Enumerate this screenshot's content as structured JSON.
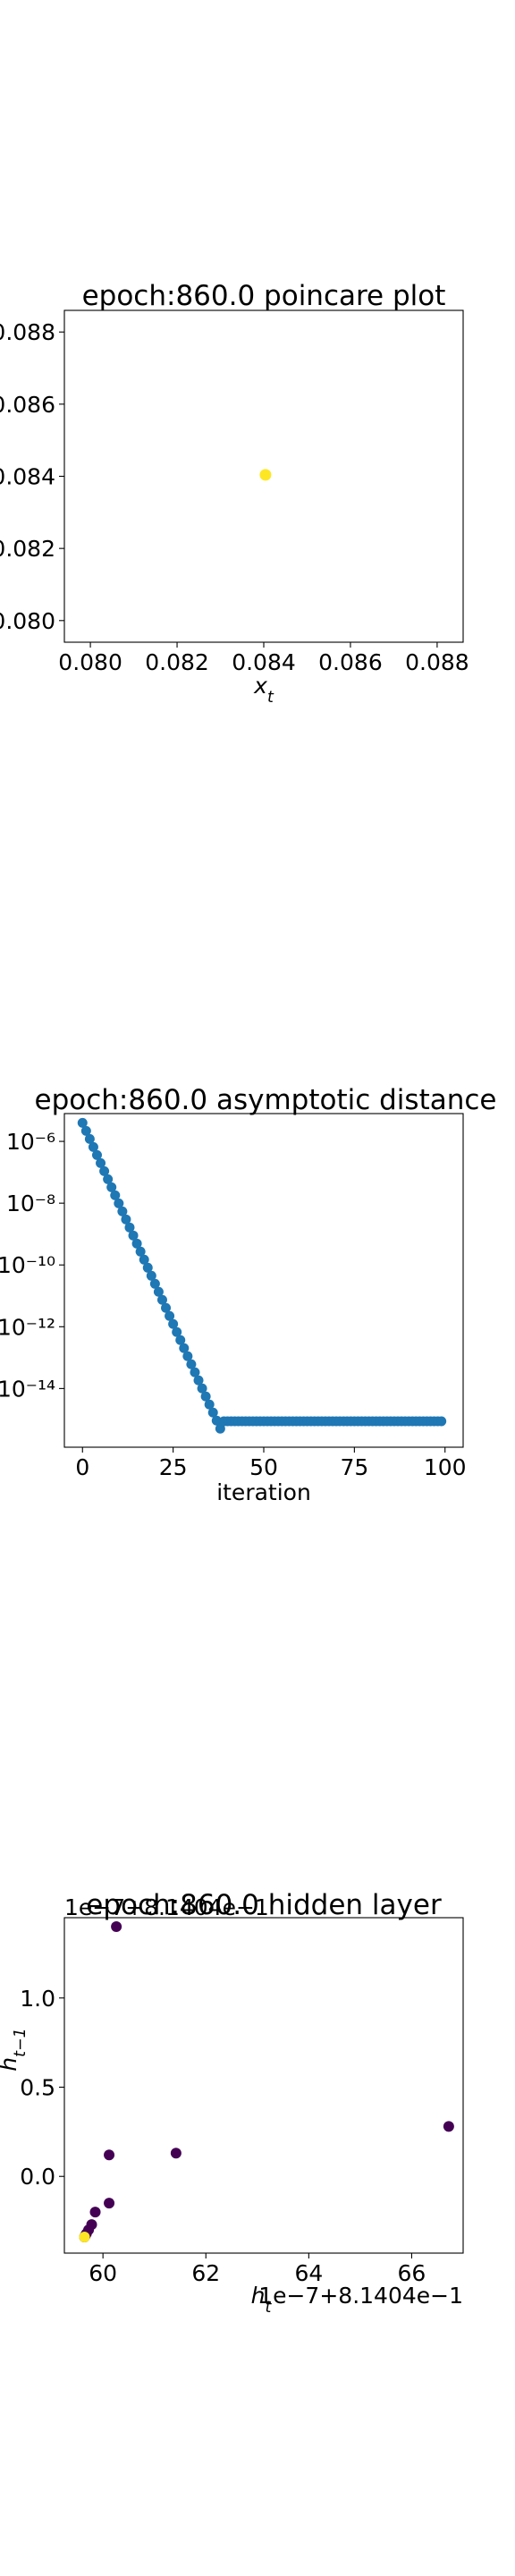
{
  "chart_data": [
    {
      "type": "scatter",
      "title": "epoch:860.0 poincare plot",
      "xlabel": "x_t",
      "ylabel": "",
      "xlim": [
        0.0794,
        0.0886
      ],
      "ylim": [
        0.0794,
        0.0886
      ],
      "xticks": [
        0.08,
        0.082,
        0.084,
        0.086,
        0.088
      ],
      "xtick_labels": [
        "0.080",
        "0.082",
        "0.084",
        "0.086",
        "0.088"
      ],
      "yticks": [
        0.08,
        0.082,
        0.084,
        0.086,
        0.088
      ],
      "ytick_labels": [
        "0.080",
        "0.082",
        "0.084",
        "0.086",
        "0.088"
      ],
      "points": [
        {
          "x": 0.08404,
          "y": 0.08404
        }
      ],
      "colors": {
        "point": "#fde725"
      },
      "grid": false
    },
    {
      "type": "scatter",
      "title": "epoch:860.0 asymptotic distance",
      "xlabel": "iteration",
      "ylabel": "",
      "yscale": "log",
      "xlim": [
        -5,
        105
      ],
      "ylim_log10": [
        -15.9,
        -5.1
      ],
      "xticks": [
        0,
        25,
        50,
        75,
        100
      ],
      "xtick_labels": [
        "0",
        "25",
        "50",
        "75",
        "100"
      ],
      "yticks_log10": [
        -6,
        -8,
        -10,
        -12,
        -14
      ],
      "ytick_labels": [
        "10⁻⁶",
        "10⁻⁸",
        "10⁻¹⁰",
        "10⁻¹²",
        "10⁻¹⁴"
      ],
      "decay": {
        "first_iteration": 0,
        "last_iteration": 38,
        "log10_at_first": -5.4,
        "log10_slope": -0.2605
      },
      "plateau": {
        "first_iteration": 39,
        "last_iteration": 99,
        "log10_value": -15.06
      },
      "colors": {
        "point": "#1f77b4"
      },
      "grid": false
    },
    {
      "type": "scatter",
      "title": "epoch:860.0 hidden layer",
      "xlabel": "h_t",
      "ylabel": "h_{t−1}",
      "x_offset_text": "1e−7+8.1404e−1",
      "y_offset_text": "1e−7+8.1404e−1",
      "xlim": [
        59.25,
        67.0
      ],
      "ylim": [
        -0.43,
        1.45
      ],
      "xticks": [
        60,
        62,
        64,
        66
      ],
      "xtick_labels": [
        "60",
        "62",
        "64",
        "66"
      ],
      "yticks": [
        0.0,
        0.5,
        1.0
      ],
      "ytick_labels": [
        "0.0",
        "0.5",
        "1.0"
      ],
      "points": [
        {
          "x": 60.26,
          "y": 1.4,
          "color": "#440154"
        },
        {
          "x": 66.72,
          "y": 0.28,
          "color": "#440154"
        },
        {
          "x": 61.42,
          "y": 0.13,
          "color": "#440154"
        },
        {
          "x": 60.12,
          "y": 0.12,
          "color": "#440154"
        },
        {
          "x": 60.12,
          "y": -0.15,
          "color": "#440154"
        },
        {
          "x": 59.85,
          "y": -0.2,
          "color": "#440154"
        },
        {
          "x": 59.78,
          "y": -0.27,
          "color": "#440154"
        },
        {
          "x": 59.72,
          "y": -0.3,
          "color": "#440154"
        },
        {
          "x": 59.68,
          "y": -0.32,
          "color": "#440154"
        },
        {
          "x": 59.66,
          "y": -0.33,
          "color": "#440154"
        },
        {
          "x": 59.64,
          "y": -0.34,
          "color": "#440154"
        },
        {
          "x": 59.64,
          "y": -0.34,
          "color": "#fde725"
        }
      ],
      "grid": false
    }
  ]
}
